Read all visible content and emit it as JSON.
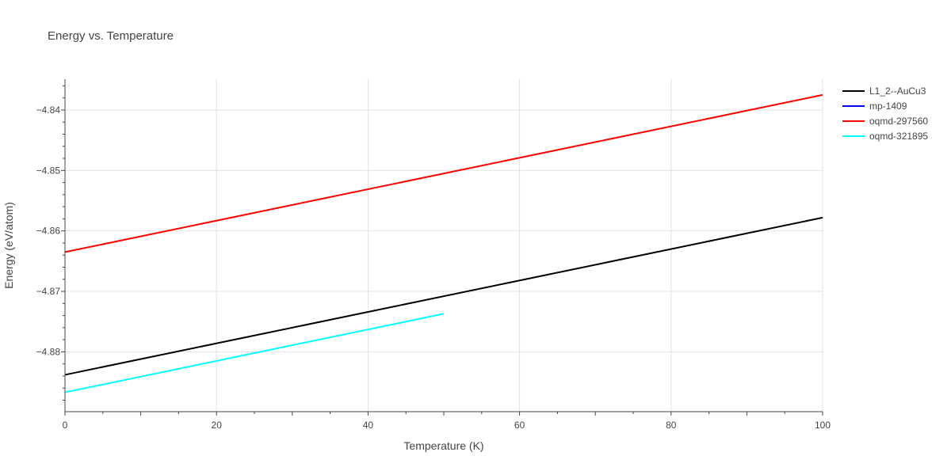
{
  "chart_data": {
    "type": "line",
    "title": "Energy vs. Temperature",
    "xlabel": "Temperature (K)",
    "ylabel": "Energy (eV/atom)",
    "xlim": [
      0,
      100
    ],
    "ylim": [
      -4.8899,
      -4.8349
    ],
    "x_ticks": [
      0,
      20,
      40,
      60,
      80,
      100
    ],
    "x_tick_labels": [
      "0",
      "20",
      "40",
      "60",
      "80",
      "100"
    ],
    "y_ticks": [
      -4.88,
      -4.87,
      -4.86,
      -4.85,
      -4.84
    ],
    "y_tick_labels": [
      "−4.88",
      "−4.87",
      "−4.86",
      "−4.85",
      "−4.84"
    ],
    "grid": true,
    "legend_position": "top-right",
    "series": [
      {
        "name": "L1_2--AuCu3",
        "color": "#000000",
        "x": [
          0,
          100
        ],
        "y": [
          -4.8838,
          -4.8578
        ]
      },
      {
        "name": "mp-1409",
        "color": "#0000ff",
        "x": [],
        "y": []
      },
      {
        "name": "oqmd-297560",
        "color": "#ff0000",
        "x": [
          0,
          100
        ],
        "y": [
          -4.8635,
          -4.8375
        ]
      },
      {
        "name": "oqmd-321895",
        "color": "#00ffff",
        "x": [
          0,
          50
        ],
        "y": [
          -4.8867,
          -4.8737
        ]
      }
    ]
  }
}
